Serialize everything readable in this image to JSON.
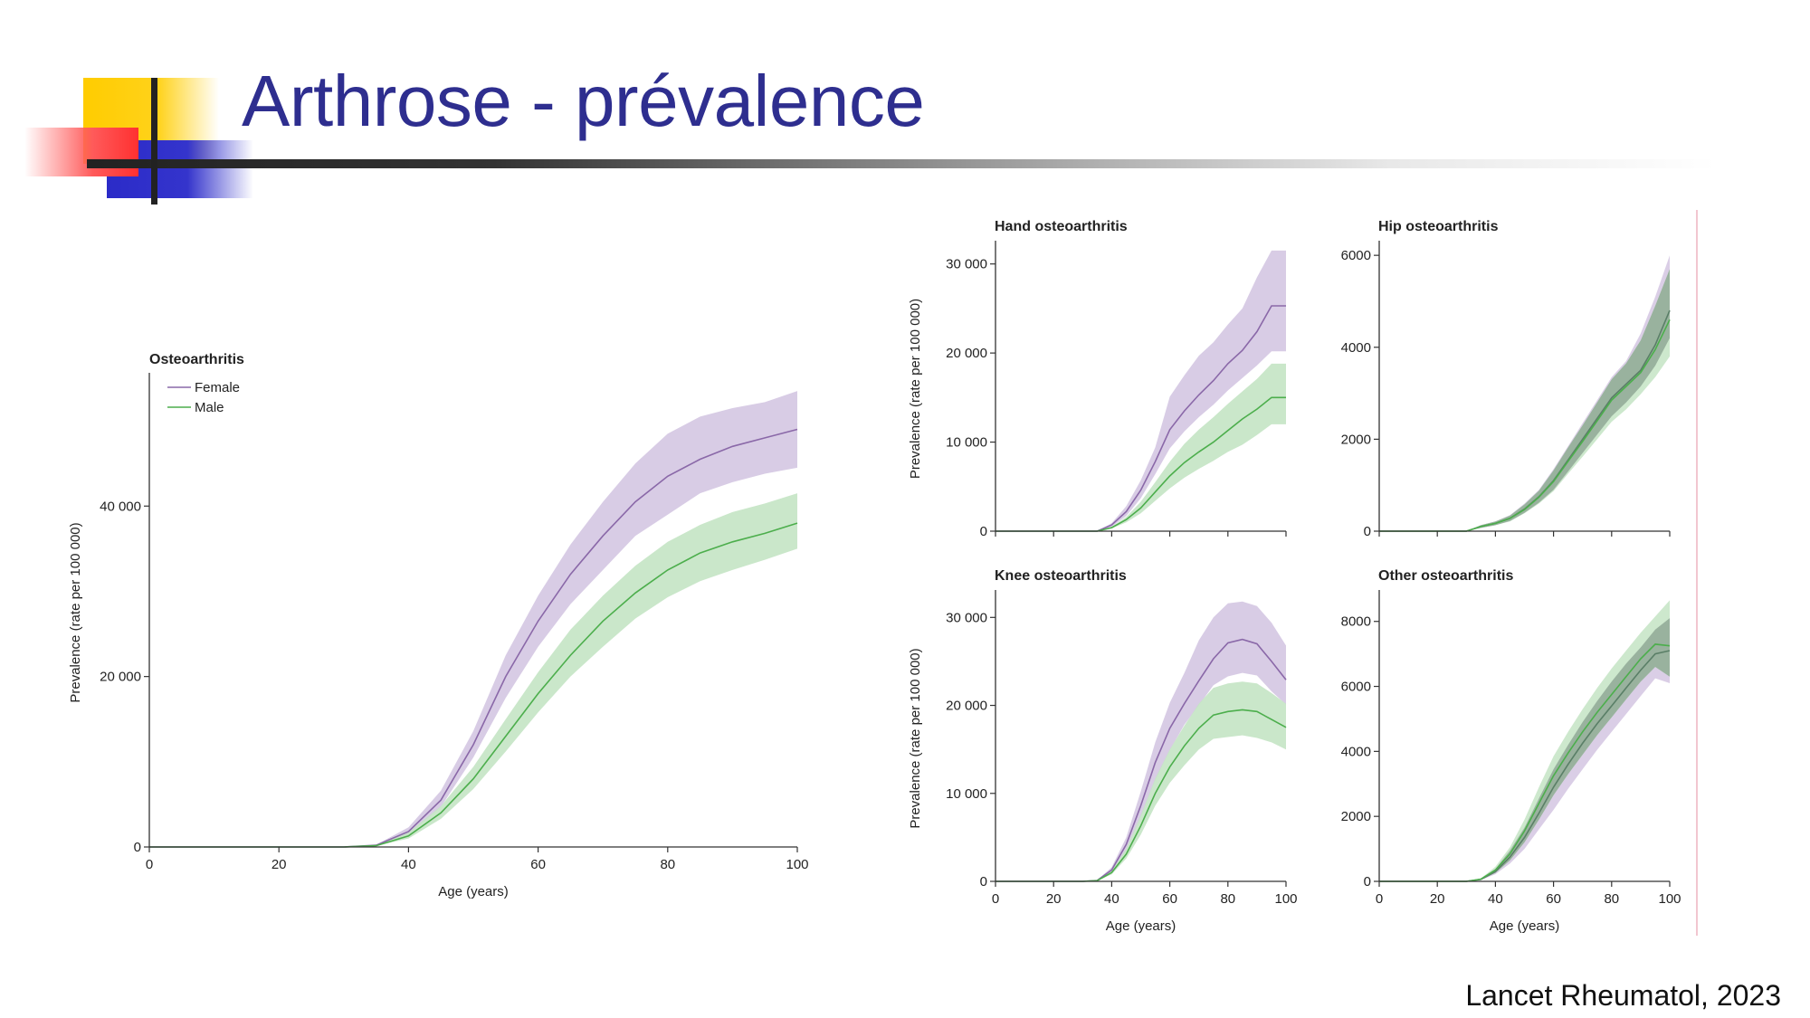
{
  "slide": {
    "title": "Arthrose - prévalence",
    "citation": "Lancet Rheumatol, 2023"
  },
  "colors": {
    "title": "#2e2e8f",
    "female_line": "#8a68a8",
    "female_band": "#d4c6e2",
    "male_line": "#4cae4c",
    "male_band": "#c4e4c4",
    "overlap_line": "#5a7f67",
    "overlap_band": "#94ad99"
  },
  "legend": {
    "female": "Female",
    "male": "Male"
  },
  "chart_data": [
    {
      "id": "oa",
      "type": "line",
      "title": "Osteoarthritis",
      "xlabel": "Age (years)",
      "ylabel": "Prevalence (rate per 100 000)",
      "xlim": [
        0,
        100
      ],
      "ylim": [
        0,
        55000
      ],
      "x_ticks": [
        0,
        20,
        40,
        60,
        80,
        100
      ],
      "y_ticks": [
        0,
        20000,
        40000
      ],
      "y_tick_labels": [
        "0",
        "20 000",
        "40 000"
      ],
      "legend": true,
      "x": [
        0,
        5,
        10,
        15,
        20,
        25,
        30,
        35,
        40,
        45,
        50,
        55,
        60,
        65,
        70,
        75,
        80,
        85,
        90,
        95,
        100
      ],
      "series": [
        {
          "name": "Female",
          "values": [
            0,
            0,
            0,
            0,
            0,
            0,
            0,
            200,
            1800,
            5500,
            12000,
            20000,
            26500,
            32000,
            36500,
            40500,
            43500,
            45500,
            47000,
            48000,
            49000
          ],
          "lower": [
            0,
            0,
            0,
            0,
            0,
            0,
            0,
            150,
            1400,
            4700,
            10500,
            17500,
            23500,
            28500,
            32500,
            36500,
            39000,
            41500,
            42800,
            43800,
            44500
          ],
          "upper": [
            0,
            0,
            0,
            0,
            0,
            0,
            0,
            260,
            2300,
            6600,
            13600,
            22500,
            29500,
            35500,
            40500,
            45000,
            48500,
            50500,
            51500,
            52200,
            53500
          ]
        },
        {
          "name": "Male",
          "values": [
            0,
            0,
            0,
            0,
            0,
            0,
            0,
            150,
            1300,
            4000,
            8000,
            13000,
            18000,
            22500,
            26500,
            29800,
            32500,
            34500,
            35800,
            36800,
            38000
          ],
          "lower": [
            0,
            0,
            0,
            0,
            0,
            0,
            0,
            110,
            1000,
            3300,
            6800,
            11200,
            15800,
            20000,
            23500,
            26800,
            29300,
            31200,
            32500,
            33700,
            35000
          ],
          "upper": [
            0,
            0,
            0,
            0,
            0,
            0,
            0,
            200,
            1700,
            4800,
            9400,
            15000,
            20500,
            25500,
            29500,
            33000,
            35800,
            37800,
            39300,
            40300,
            41500
          ]
        }
      ]
    },
    {
      "id": "hand",
      "type": "line",
      "title": "Hand osteoarthritis",
      "xlabel": "",
      "ylabel": "Prevalence (rate per 100 000)",
      "xlim": [
        0,
        100
      ],
      "ylim": [
        0,
        32000
      ],
      "x_ticks": [
        0,
        20,
        40,
        60,
        80,
        100
      ],
      "x_tick_labels_shown": false,
      "y_ticks": [
        0,
        10000,
        20000,
        30000
      ],
      "y_tick_labels": [
        "0",
        "10 000",
        "20 000",
        "30 000"
      ],
      "x": [
        0,
        5,
        10,
        15,
        20,
        25,
        30,
        35,
        40,
        45,
        50,
        55,
        60,
        65,
        70,
        75,
        80,
        85,
        90,
        95,
        100
      ],
      "series": [
        {
          "name": "Female",
          "values": [
            0,
            0,
            0,
            0,
            0,
            0,
            0,
            0,
            700,
            2200,
            4600,
            7800,
            11400,
            13500,
            15300,
            16900,
            18800,
            20300,
            22400,
            25300,
            25300
          ],
          "lower": [
            0,
            0,
            0,
            0,
            0,
            0,
            0,
            0,
            500,
            1700,
            3700,
            6400,
            9300,
            11200,
            12800,
            14200,
            15800,
            17200,
            18600,
            20200,
            20200
          ],
          "upper": [
            0,
            0,
            0,
            0,
            0,
            0,
            0,
            0,
            900,
            2800,
            5700,
            9400,
            15100,
            17500,
            19700,
            21200,
            23200,
            25000,
            28500,
            31500,
            31500
          ]
        },
        {
          "name": "Male",
          "values": [
            0,
            0,
            0,
            0,
            0,
            0,
            0,
            0,
            400,
            1300,
            2600,
            4400,
            6200,
            7700,
            8900,
            10000,
            11300,
            12600,
            13700,
            15000,
            15000
          ],
          "lower": [
            0,
            0,
            0,
            0,
            0,
            0,
            0,
            0,
            300,
            1000,
            2000,
            3400,
            4800,
            6000,
            7000,
            7900,
            8900,
            9700,
            10800,
            12000,
            12000
          ],
          "upper": [
            0,
            0,
            0,
            0,
            0,
            0,
            0,
            0,
            500,
            1600,
            3300,
            5500,
            7800,
            9800,
            11400,
            12800,
            14300,
            15700,
            17100,
            18800,
            18800
          ]
        }
      ]
    },
    {
      "id": "hip",
      "type": "line",
      "title": "Hip osteoarthritis",
      "xlabel": "",
      "ylabel": "",
      "xlim": [
        0,
        100
      ],
      "ylim": [
        0,
        6200
      ],
      "x_ticks": [
        0,
        20,
        40,
        60,
        80,
        100
      ],
      "x_tick_labels_shown": false,
      "y_ticks": [
        0,
        2000,
        4000,
        6000
      ],
      "y_tick_labels": [
        "0",
        "2000",
        "4000",
        "6000"
      ],
      "overlap": true,
      "x": [
        0,
        5,
        10,
        15,
        20,
        25,
        30,
        35,
        40,
        45,
        50,
        55,
        60,
        65,
        70,
        75,
        80,
        85,
        90,
        95,
        100
      ],
      "series": [
        {
          "name": "Female",
          "values": [
            0,
            0,
            0,
            0,
            0,
            0,
            0,
            100,
            170,
            280,
            480,
            750,
            1100,
            1550,
            2000,
            2450,
            2900,
            3200,
            3500,
            4050,
            4800
          ],
          "lower": [
            0,
            0,
            0,
            0,
            0,
            0,
            0,
            70,
            130,
            220,
            400,
            620,
            900,
            1300,
            1700,
            2100,
            2500,
            2800,
            3150,
            3600,
            4200
          ],
          "upper": [
            0,
            0,
            0,
            0,
            0,
            0,
            0,
            130,
            210,
            350,
            600,
            900,
            1350,
            1850,
            2350,
            2850,
            3350,
            3700,
            4300,
            5100,
            6000
          ]
        },
        {
          "name": "Male",
          "values": [
            0,
            0,
            0,
            0,
            0,
            0,
            0,
            100,
            170,
            280,
            470,
            740,
            1080,
            1520,
            1950,
            2400,
            2850,
            3150,
            3450,
            3950,
            4600
          ],
          "lower": [
            0,
            0,
            0,
            0,
            0,
            0,
            0,
            70,
            130,
            210,
            390,
            600,
            870,
            1250,
            1620,
            2000,
            2380,
            2650,
            2980,
            3350,
            3800
          ],
          "upper": [
            0,
            0,
            0,
            0,
            0,
            0,
            0,
            130,
            210,
            340,
            580,
            880,
            1320,
            1820,
            2300,
            2800,
            3300,
            3650,
            4150,
            4900,
            5700
          ]
        }
      ]
    },
    {
      "id": "knee",
      "type": "line",
      "title": "Knee osteoarthritis",
      "xlabel": "Age (years)",
      "ylabel": "Prevalence (rate per 100 000)",
      "xlim": [
        0,
        100
      ],
      "ylim": [
        0,
        32500
      ],
      "x_ticks": [
        0,
        20,
        40,
        60,
        80,
        100
      ],
      "x_tick_labels_shown": true,
      "y_ticks": [
        0,
        10000,
        20000,
        30000
      ],
      "y_tick_labels": [
        "0",
        "10 000",
        "20 000",
        "30 000"
      ],
      "x": [
        0,
        5,
        10,
        15,
        20,
        25,
        30,
        35,
        40,
        45,
        50,
        55,
        60,
        65,
        70,
        75,
        80,
        85,
        90,
        95,
        100
      ],
      "series": [
        {
          "name": "Female",
          "values": [
            0,
            0,
            0,
            0,
            0,
            0,
            0,
            100,
            1300,
            4200,
            8600,
            13500,
            17400,
            20200,
            22800,
            25300,
            27100,
            27500,
            27000,
            25000,
            22900
          ],
          "lower": [
            0,
            0,
            0,
            0,
            0,
            0,
            0,
            80,
            1000,
            3500,
            7300,
            11500,
            14900,
            17800,
            20000,
            22300,
            23300,
            23700,
            23400,
            21600,
            20100
          ],
          "upper": [
            0,
            0,
            0,
            0,
            0,
            0,
            0,
            130,
            1600,
            5000,
            10200,
            15800,
            20300,
            23700,
            27400,
            30000,
            31600,
            31800,
            31300,
            29400,
            26800
          ]
        },
        {
          "name": "Male",
          "values": [
            0,
            0,
            0,
            0,
            0,
            0,
            0,
            80,
            1000,
            3100,
            6300,
            10000,
            13000,
            15400,
            17400,
            18900,
            19300,
            19500,
            19300,
            18400,
            17500
          ],
          "lower": [
            0,
            0,
            0,
            0,
            0,
            0,
            0,
            60,
            800,
            2600,
            5300,
            8600,
            11200,
            13200,
            15000,
            16200,
            16400,
            16600,
            16300,
            15800,
            15000
          ],
          "upper": [
            0,
            0,
            0,
            0,
            0,
            0,
            0,
            110,
            1200,
            3700,
            7500,
            11700,
            15000,
            17700,
            20200,
            22000,
            22500,
            22700,
            22500,
            21400,
            20200
          ]
        }
      ]
    },
    {
      "id": "other",
      "type": "line",
      "title": "Other osteoarthritis",
      "xlabel": "Age (years)",
      "ylabel": "",
      "xlim": [
        0,
        100
      ],
      "ylim": [
        0,
        8800
      ],
      "x_ticks": [
        0,
        20,
        40,
        60,
        80,
        100
      ],
      "x_tick_labels_shown": true,
      "y_ticks": [
        0,
        2000,
        4000,
        6000,
        8000
      ],
      "y_tick_labels": [
        "0",
        "2000",
        "4000",
        "6000",
        "8000"
      ],
      "overlap": true,
      "x": [
        0,
        5,
        10,
        15,
        20,
        25,
        30,
        35,
        40,
        45,
        50,
        55,
        60,
        65,
        70,
        75,
        80,
        85,
        90,
        95,
        100
      ],
      "series": [
        {
          "name": "Female",
          "values": [
            0,
            0,
            0,
            0,
            0,
            0,
            0,
            60,
            300,
            750,
            1350,
            2100,
            2900,
            3600,
            4250,
            4850,
            5400,
            5950,
            6500,
            7000,
            7100
          ],
          "lower": [
            0,
            0,
            0,
            0,
            0,
            0,
            0,
            40,
            220,
            550,
            1000,
            1600,
            2200,
            2850,
            3450,
            4050,
            4600,
            5150,
            5700,
            6250,
            6100
          ],
          "upper": [
            0,
            0,
            0,
            0,
            0,
            0,
            0,
            80,
            380,
            950,
            1650,
            2550,
            3450,
            4200,
            4900,
            5550,
            6150,
            6700,
            7200,
            7750,
            8100
          ]
        },
        {
          "name": "Male",
          "values": [
            0,
            0,
            0,
            0,
            0,
            0,
            0,
            70,
            350,
            850,
            1550,
            2400,
            3250,
            3950,
            4600,
            5200,
            5750,
            6300,
            6850,
            7300,
            7250
          ],
          "lower": [
            0,
            0,
            0,
            0,
            0,
            0,
            0,
            50,
            260,
            650,
            1200,
            1900,
            2650,
            3300,
            3900,
            4500,
            5050,
            5600,
            6150,
            6600,
            6300
          ],
          "upper": [
            0,
            0,
            0,
            0,
            0,
            0,
            0,
            90,
            450,
            1050,
            1900,
            2900,
            3850,
            4600,
            5300,
            5950,
            6550,
            7100,
            7650,
            8150,
            8650
          ]
        }
      ]
    }
  ]
}
